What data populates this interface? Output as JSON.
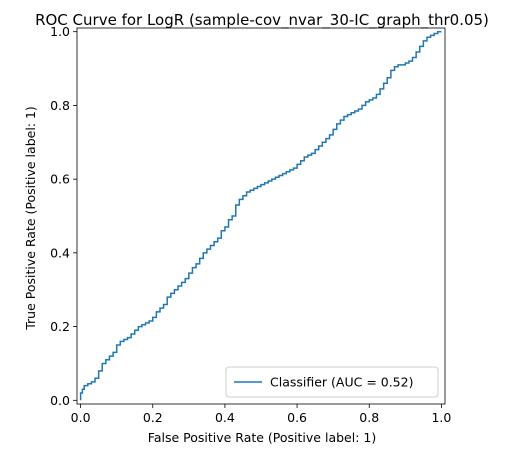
{
  "colors": {
    "series": "#1f77b4",
    "axes": "#000000",
    "legend_border": "#cccccc"
  },
  "chart_data": {
    "type": "line",
    "title": "ROC Curve for LogR (sample-cov_nvar_30-IC_graph_thr0.05)",
    "xlabel": "False Positive Rate (Positive label: 1)",
    "ylabel": "True Positive Rate (Positive label: 1)",
    "xlim": [
      -0.01,
      1.01
    ],
    "ylim": [
      -0.01,
      1.01
    ],
    "xticks": [
      0.0,
      0.2,
      0.4,
      0.6,
      0.8,
      1.0
    ],
    "yticks": [
      0.0,
      0.2,
      0.4,
      0.6,
      0.8,
      1.0
    ],
    "xtick_labels": [
      "0.0",
      "0.2",
      "0.4",
      "0.6",
      "0.8",
      "1.0"
    ],
    "ytick_labels": [
      "0.0",
      "0.2",
      "0.4",
      "0.6",
      "0.8",
      "1.0"
    ],
    "grid": false,
    "legend": {
      "placement": "lower-right"
    },
    "series": [
      {
        "name": "Classifier (AUC = 0.52)",
        "x": [
          0.0,
          0.005,
          0.01,
          0.02,
          0.03,
          0.04,
          0.05,
          0.06,
          0.07,
          0.08,
          0.09,
          0.1,
          0.11,
          0.12,
          0.13,
          0.14,
          0.15,
          0.16,
          0.17,
          0.18,
          0.19,
          0.2,
          0.21,
          0.22,
          0.23,
          0.24,
          0.25,
          0.26,
          0.27,
          0.28,
          0.29,
          0.3,
          0.31,
          0.32,
          0.33,
          0.34,
          0.35,
          0.36,
          0.37,
          0.38,
          0.39,
          0.4,
          0.41,
          0.42,
          0.43,
          0.44,
          0.45,
          0.46,
          0.47,
          0.48,
          0.49,
          0.5,
          0.51,
          0.52,
          0.53,
          0.54,
          0.55,
          0.56,
          0.57,
          0.58,
          0.59,
          0.6,
          0.61,
          0.62,
          0.63,
          0.64,
          0.65,
          0.66,
          0.67,
          0.68,
          0.69,
          0.7,
          0.71,
          0.72,
          0.73,
          0.74,
          0.75,
          0.76,
          0.77,
          0.78,
          0.79,
          0.8,
          0.81,
          0.82,
          0.83,
          0.84,
          0.85,
          0.86,
          0.87,
          0.88,
          0.89,
          0.9,
          0.91,
          0.92,
          0.93,
          0.94,
          0.95,
          0.96,
          0.97,
          0.98,
          0.99,
          1.0
        ],
        "y": [
          0.0,
          0.02,
          0.03,
          0.04,
          0.045,
          0.05,
          0.06,
          0.08,
          0.1,
          0.11,
          0.12,
          0.13,
          0.15,
          0.16,
          0.165,
          0.17,
          0.18,
          0.19,
          0.2,
          0.205,
          0.21,
          0.215,
          0.225,
          0.24,
          0.25,
          0.26,
          0.28,
          0.29,
          0.3,
          0.31,
          0.32,
          0.33,
          0.345,
          0.36,
          0.37,
          0.385,
          0.4,
          0.41,
          0.42,
          0.43,
          0.44,
          0.46,
          0.47,
          0.49,
          0.5,
          0.53,
          0.545,
          0.555,
          0.565,
          0.57,
          0.575,
          0.58,
          0.585,
          0.59,
          0.595,
          0.6,
          0.605,
          0.61,
          0.615,
          0.62,
          0.625,
          0.63,
          0.64,
          0.65,
          0.66,
          0.665,
          0.67,
          0.68,
          0.69,
          0.7,
          0.71,
          0.72,
          0.735,
          0.75,
          0.76,
          0.77,
          0.775,
          0.78,
          0.785,
          0.79,
          0.8,
          0.81,
          0.815,
          0.82,
          0.83,
          0.845,
          0.86,
          0.875,
          0.895,
          0.905,
          0.91,
          0.91,
          0.915,
          0.92,
          0.93,
          0.945,
          0.96,
          0.975,
          0.985,
          0.99,
          0.995,
          1.0
        ]
      }
    ]
  }
}
